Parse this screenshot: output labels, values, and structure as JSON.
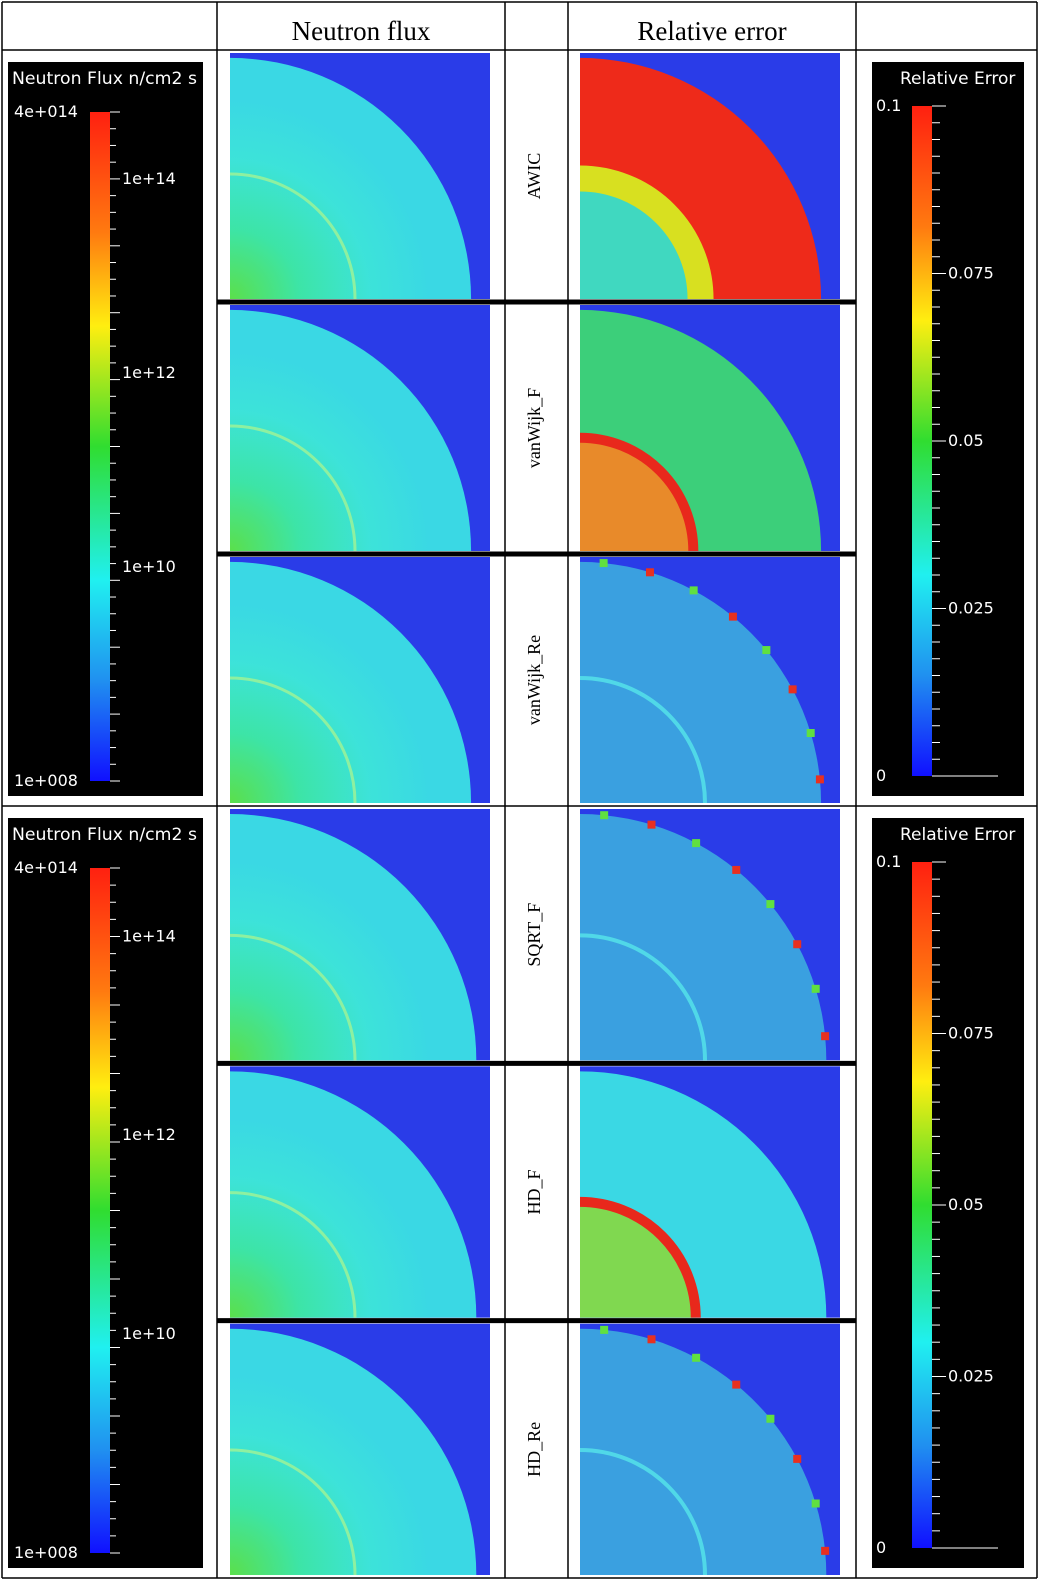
{
  "header": {
    "columns": [
      "Neutron flux",
      "Relative error"
    ]
  },
  "groups": [
    {
      "flux_legend": {
        "title": "Neutron Flux n/cm2 s",
        "ticks": [
          "4e+014",
          "1e+14",
          "1e+12",
          "1e+10",
          "1e+008"
        ]
      },
      "error_legend": {
        "title": "Relative Error",
        "ticks": [
          "0.1",
          "0.075",
          "0.05",
          "0.025",
          "0"
        ]
      },
      "rows": [
        "AWIC",
        "vanWijk_F",
        "vanWijk_Re"
      ]
    },
    {
      "flux_legend": {
        "title": "Neutron Flux n/cm2 s",
        "ticks": [
          "4e+014",
          "1e+14",
          "1e+12",
          "1e+10",
          "1e+008"
        ]
      },
      "error_legend": {
        "title": "Relative Error",
        "ticks": [
          "0.1",
          "0.075",
          "0.05",
          "0.025",
          "0"
        ]
      },
      "rows": [
        "SQRT_F",
        "HD_F",
        "HD_Re"
      ]
    }
  ]
}
